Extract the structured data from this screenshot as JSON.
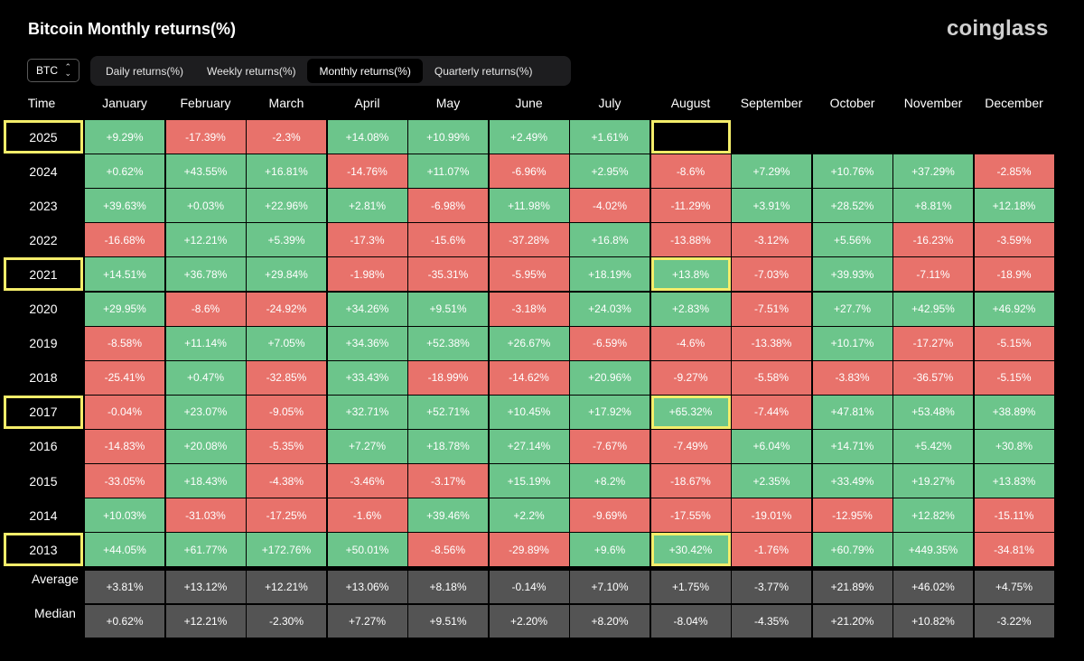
{
  "title": "Bitcoin Monthly returns(%)",
  "brand": "coinglass",
  "asset_select": {
    "value": "BTC",
    "icon": "chevron-updown-icon"
  },
  "tabs": [
    {
      "label": "Daily returns(%)",
      "active": false
    },
    {
      "label": "Weekly returns(%)",
      "active": false
    },
    {
      "label": "Monthly returns(%)",
      "active": true
    },
    {
      "label": "Quarterly returns(%)",
      "active": false
    }
  ],
  "colors": {
    "positive": "#6cc58b",
    "negative": "#e8726b",
    "stat": "#545454",
    "highlight": "#f4ed6a"
  },
  "table": {
    "corner_label": "Time",
    "months": [
      "January",
      "February",
      "March",
      "April",
      "May",
      "June",
      "July",
      "August",
      "September",
      "October",
      "November",
      "December"
    ],
    "rows": [
      {
        "year": "2025",
        "highlight": true,
        "values": [
          "+9.29%",
          "-17.39%",
          "-2.3%",
          "+14.08%",
          "+10.99%",
          "+2.49%",
          "+1.61%",
          "",
          "",
          "",
          "",
          ""
        ],
        "highlight_cells": [
          7
        ]
      },
      {
        "year": "2024",
        "highlight": false,
        "values": [
          "+0.62%",
          "+43.55%",
          "+16.81%",
          "-14.76%",
          "+11.07%",
          "-6.96%",
          "+2.95%",
          "-8.6%",
          "+7.29%",
          "+10.76%",
          "+37.29%",
          "-2.85%"
        ]
      },
      {
        "year": "2023",
        "highlight": false,
        "values": [
          "+39.63%",
          "+0.03%",
          "+22.96%",
          "+2.81%",
          "-6.98%",
          "+11.98%",
          "-4.02%",
          "-11.29%",
          "+3.91%",
          "+28.52%",
          "+8.81%",
          "+12.18%"
        ]
      },
      {
        "year": "2022",
        "highlight": false,
        "values": [
          "-16.68%",
          "+12.21%",
          "+5.39%",
          "-17.3%",
          "-15.6%",
          "-37.28%",
          "+16.8%",
          "-13.88%",
          "-3.12%",
          "+5.56%",
          "-16.23%",
          "-3.59%"
        ]
      },
      {
        "year": "2021",
        "highlight": true,
        "values": [
          "+14.51%",
          "+36.78%",
          "+29.84%",
          "-1.98%",
          "-35.31%",
          "-5.95%",
          "+18.19%",
          "+13.8%",
          "-7.03%",
          "+39.93%",
          "-7.11%",
          "-18.9%"
        ],
        "highlight_cells": [
          7
        ]
      },
      {
        "year": "2020",
        "highlight": false,
        "values": [
          "+29.95%",
          "-8.6%",
          "-24.92%",
          "+34.26%",
          "+9.51%",
          "-3.18%",
          "+24.03%",
          "+2.83%",
          "-7.51%",
          "+27.7%",
          "+42.95%",
          "+46.92%"
        ]
      },
      {
        "year": "2019",
        "highlight": false,
        "values": [
          "-8.58%",
          "+11.14%",
          "+7.05%",
          "+34.36%",
          "+52.38%",
          "+26.67%",
          "-6.59%",
          "-4.6%",
          "-13.38%",
          "+10.17%",
          "-17.27%",
          "-5.15%"
        ]
      },
      {
        "year": "2018",
        "highlight": false,
        "values": [
          "-25.41%",
          "+0.47%",
          "-32.85%",
          "+33.43%",
          "-18.99%",
          "-14.62%",
          "+20.96%",
          "-9.27%",
          "-5.58%",
          "-3.83%",
          "-36.57%",
          "-5.15%"
        ]
      },
      {
        "year": "2017",
        "highlight": true,
        "values": [
          "-0.04%",
          "+23.07%",
          "-9.05%",
          "+32.71%",
          "+52.71%",
          "+10.45%",
          "+17.92%",
          "+65.32%",
          "-7.44%",
          "+47.81%",
          "+53.48%",
          "+38.89%"
        ],
        "highlight_cells": [
          7
        ]
      },
      {
        "year": "2016",
        "highlight": false,
        "values": [
          "-14.83%",
          "+20.08%",
          "-5.35%",
          "+7.27%",
          "+18.78%",
          "+27.14%",
          "-7.67%",
          "-7.49%",
          "+6.04%",
          "+14.71%",
          "+5.42%",
          "+30.8%"
        ]
      },
      {
        "year": "2015",
        "highlight": false,
        "values": [
          "-33.05%",
          "+18.43%",
          "-4.38%",
          "-3.46%",
          "-3.17%",
          "+15.19%",
          "+8.2%",
          "-18.67%",
          "+2.35%",
          "+33.49%",
          "+19.27%",
          "+13.83%"
        ]
      },
      {
        "year": "2014",
        "highlight": false,
        "values": [
          "+10.03%",
          "-31.03%",
          "-17.25%",
          "-1.6%",
          "+39.46%",
          "+2.2%",
          "-9.69%",
          "-17.55%",
          "-19.01%",
          "-12.95%",
          "+12.82%",
          "-15.11%"
        ]
      },
      {
        "year": "2013",
        "highlight": true,
        "values": [
          "+44.05%",
          "+61.77%",
          "+172.76%",
          "+50.01%",
          "-8.56%",
          "-29.89%",
          "+9.6%",
          "+30.42%",
          "-1.76%",
          "+60.79%",
          "+449.35%",
          "-34.81%"
        ],
        "highlight_cells": [
          7
        ]
      }
    ],
    "stats": [
      {
        "label": "Average",
        "values": [
          "+3.81%",
          "+13.12%",
          "+12.21%",
          "+13.06%",
          "+8.18%",
          "-0.14%",
          "+7.10%",
          "+1.75%",
          "-3.77%",
          "+21.89%",
          "+46.02%",
          "+4.75%"
        ]
      },
      {
        "label": "Median",
        "values": [
          "+0.62%",
          "+12.21%",
          "-2.30%",
          "+7.27%",
          "+9.51%",
          "+2.20%",
          "+8.20%",
          "-8.04%",
          "-4.35%",
          "+21.20%",
          "+10.82%",
          "-3.22%"
        ]
      }
    ]
  }
}
